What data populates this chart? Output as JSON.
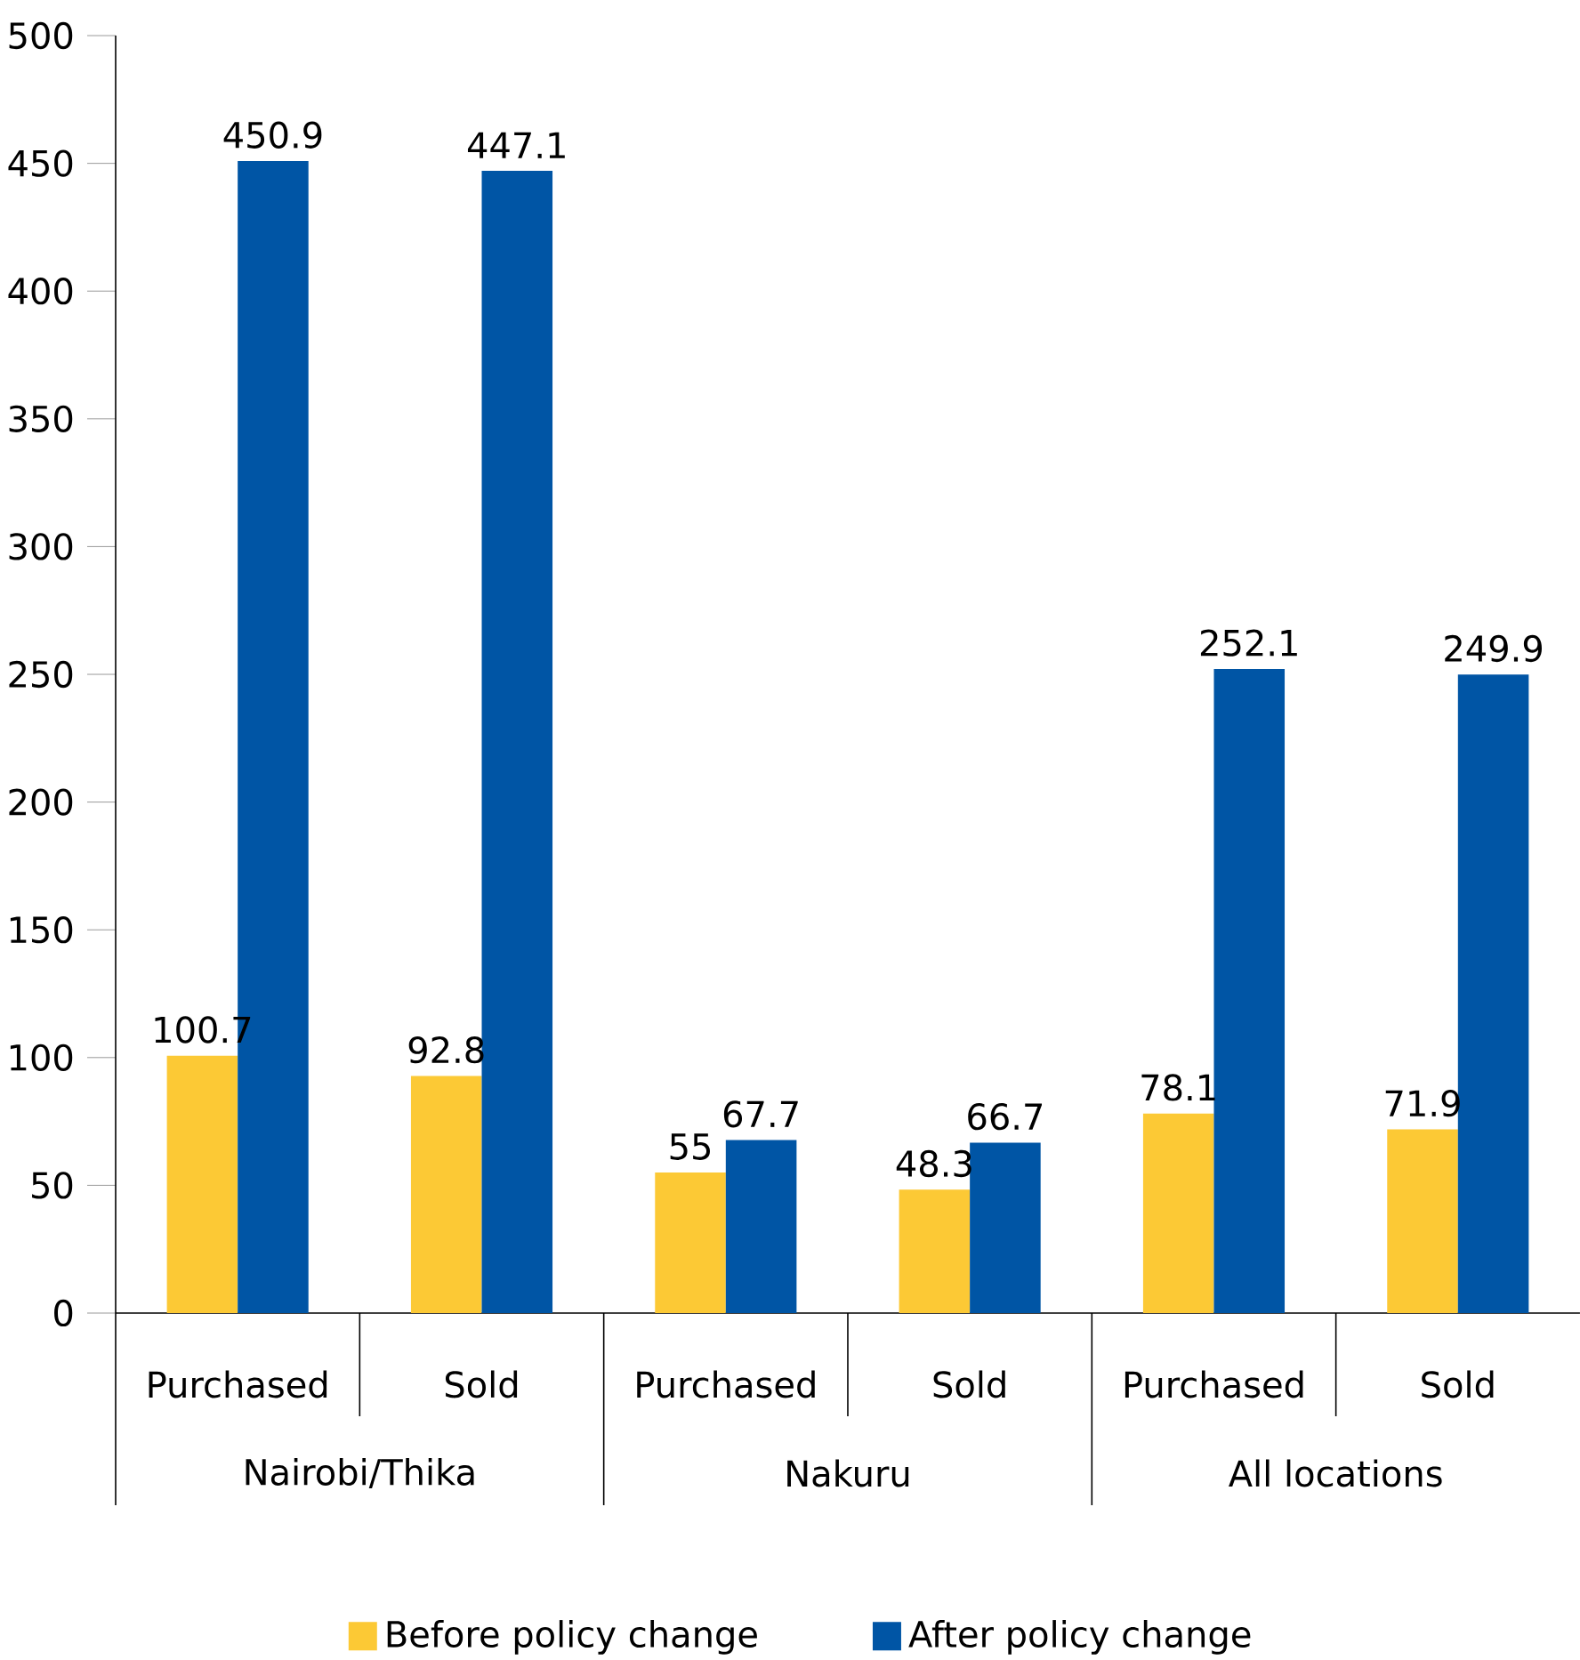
{
  "chart_data": {
    "type": "bar",
    "categories": [
      "Purchased",
      "Sold",
      "Purchased",
      "Sold",
      "Purchased",
      "Sold"
    ],
    "annotations": [
      "Nairobi/Thika",
      "Nakuru",
      "All locations"
    ],
    "series": [
      {
        "name": "Before policy change",
        "color": "#fcc935",
        "values": [
          100.7,
          92.8,
          55,
          48.3,
          78.1,
          71.9
        ]
      },
      {
        "name": "After policy change",
        "color": "#0055a5",
        "values": [
          450.9,
          447.1,
          67.7,
          66.7,
          252.1,
          249.9
        ]
      }
    ],
    "ylim": [
      0,
      500
    ],
    "yticks": [
      0,
      50,
      100,
      150,
      200,
      250,
      300,
      350,
      400,
      450,
      500
    ],
    "data_labels": true,
    "legend": "bottom"
  }
}
